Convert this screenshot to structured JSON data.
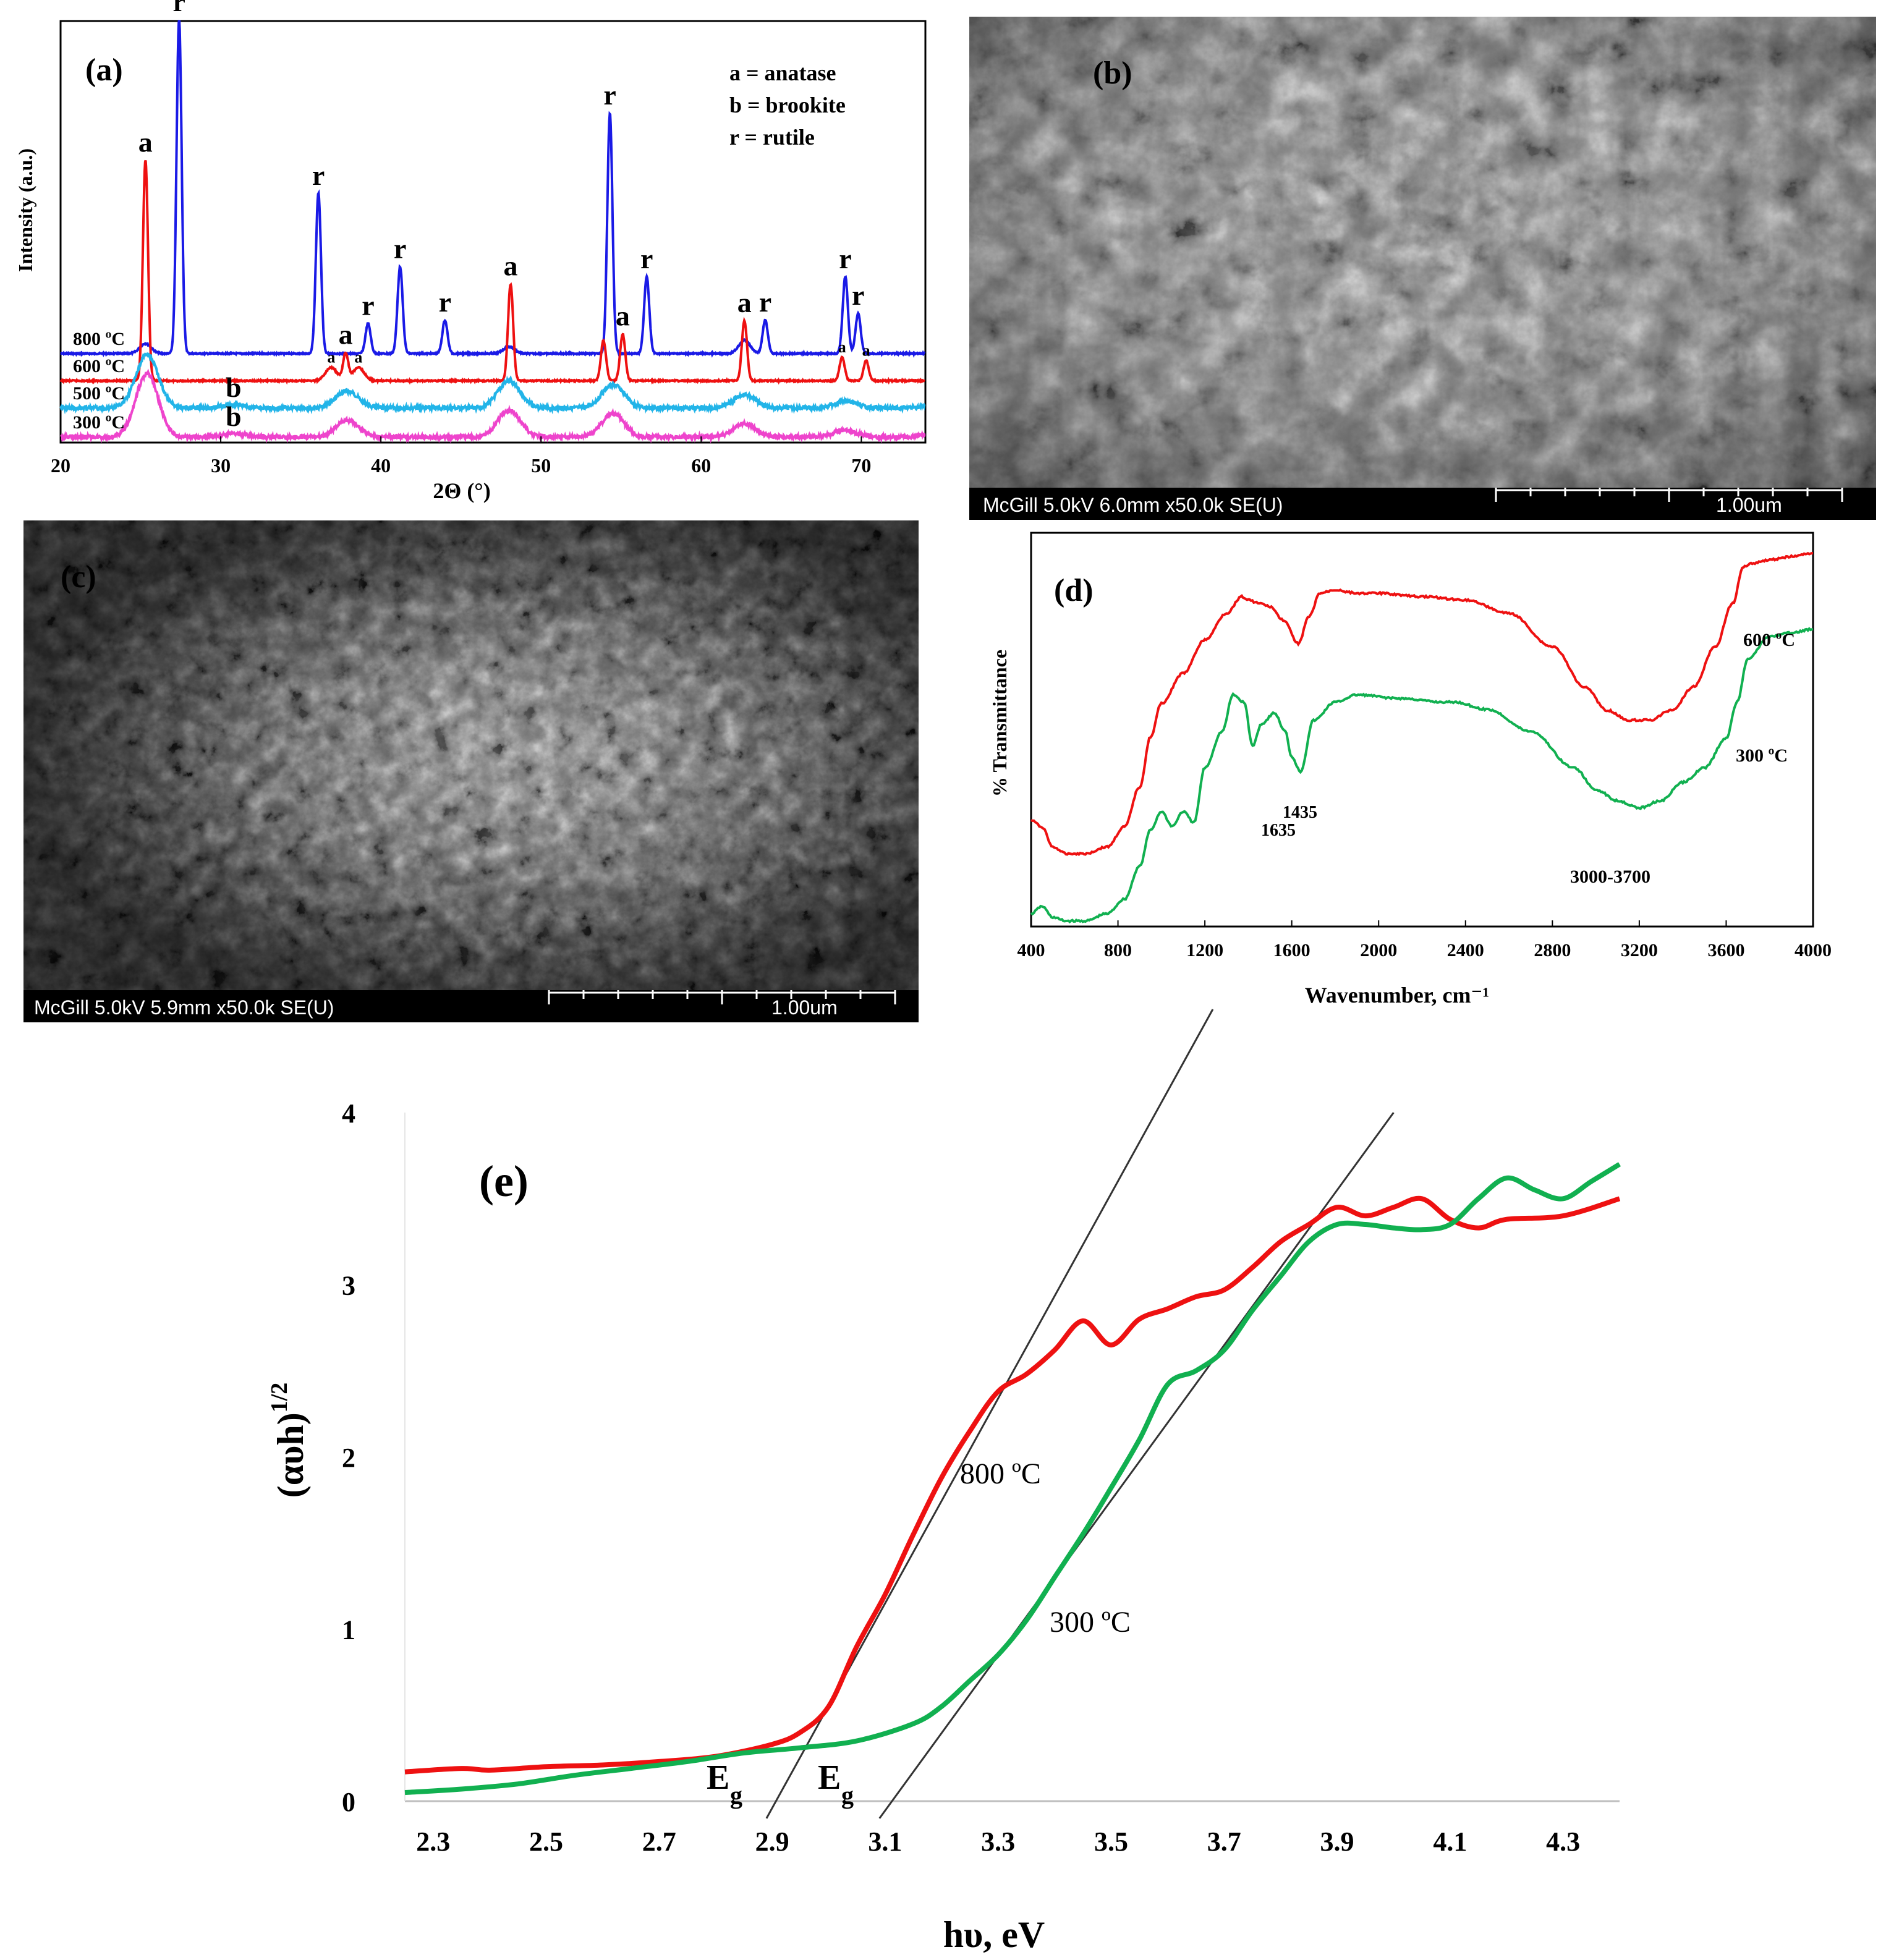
{
  "chart_data": [
    {
      "panel": "(a)",
      "type": "line",
      "xlabel": "2Θ (°)",
      "ylabel": "Intensity (a.u.)",
      "xlim": [
        20,
        74
      ],
      "xticks": [
        "20",
        "30",
        "40",
        "50",
        "60",
        "70"
      ],
      "legend_text": [
        "a = anatase",
        "b = brookite",
        "r = rutile"
      ],
      "legend_position": "top-right",
      "series": [
        {
          "name": "800 ºC",
          "color": "#1a1ae6",
          "peaks": [
            [
              25.3,
              0.03
            ],
            [
              27.4,
              1.0
            ],
            [
              36.1,
              0.48
            ],
            [
              39.2,
              0.09
            ],
            [
              41.2,
              0.26
            ],
            [
              44.0,
              0.1
            ],
            [
              48.0,
              0.02
            ],
            [
              54.3,
              0.72
            ],
            [
              56.6,
              0.23
            ],
            [
              62.7,
              0.04
            ],
            [
              64.0,
              0.1
            ],
            [
              69.0,
              0.23
            ],
            [
              69.8,
              0.12
            ]
          ]
        },
        {
          "name": "600 ºC",
          "color": "#ee1111",
          "peaks": [
            [
              25.3,
              0.66
            ],
            [
              36.9,
              0.04
            ],
            [
              37.8,
              0.08
            ],
            [
              38.6,
              0.04
            ],
            [
              48.1,
              0.29
            ],
            [
              53.9,
              0.12
            ],
            [
              55.1,
              0.14
            ],
            [
              62.7,
              0.18
            ],
            [
              68.8,
              0.07
            ],
            [
              70.3,
              0.06
            ],
            [
              75.0,
              0.05
            ]
          ]
        },
        {
          "name": "500 ºC",
          "color": "#22b4e8",
          "peaks": [
            [
              25.4,
              0.16
            ],
            [
              30.8,
              0.01
            ],
            [
              37.9,
              0.05
            ],
            [
              48.0,
              0.08
            ],
            [
              54.5,
              0.07
            ],
            [
              62.7,
              0.04
            ],
            [
              69.0,
              0.02
            ],
            [
              75.0,
              0.02
            ]
          ]
        },
        {
          "name": "300 ºC",
          "color": "#ee44cc",
          "peaks": [
            [
              25.4,
              0.19
            ],
            [
              30.8,
              0.01
            ],
            [
              37.9,
              0.05
            ],
            [
              48.0,
              0.08
            ],
            [
              54.5,
              0.07
            ],
            [
              62.7,
              0.04
            ],
            [
              69.0,
              0.02
            ],
            [
              75.0,
              0.02
            ]
          ]
        }
      ],
      "annotations": [
        {
          "text": "(a)",
          "x": 23.2,
          "series": null
        },
        {
          "text": "a",
          "x": 25.3,
          "series": "600 ºC"
        },
        {
          "text": "r",
          "x": 27.4,
          "series": "800 ºC"
        },
        {
          "text": "r",
          "x": 36.1,
          "series": "800 ºC"
        },
        {
          "text": "a",
          "x": 37.8,
          "series": "600 ºC"
        },
        {
          "text": "r",
          "x": 39.2,
          "series": "800 ºC"
        },
        {
          "text": "a",
          "x": 36.9,
          "series": "600 ºC",
          "small": true
        },
        {
          "text": "a",
          "x": 38.6,
          "series": "600 ºC",
          "small": true
        },
        {
          "text": "r",
          "x": 41.2,
          "series": "800 ºC"
        },
        {
          "text": "r",
          "x": 44.0,
          "series": "800 ºC"
        },
        {
          "text": "a",
          "x": 48.1,
          "series": "600 ºC"
        },
        {
          "text": "r",
          "x": 54.3,
          "series": "800 ºC"
        },
        {
          "text": "a",
          "x": 55.1,
          "series": "600 ºC"
        },
        {
          "text": "r",
          "x": 56.6,
          "series": "800 ºC"
        },
        {
          "text": "a",
          "x": 62.7,
          "series": "600 ºC"
        },
        {
          "text": "r",
          "x": 64.0,
          "series": "800 ºC"
        },
        {
          "text": "r",
          "x": 69.0,
          "series": "800 ºC"
        },
        {
          "text": "r",
          "x": 69.8,
          "series": "800 ºC"
        },
        {
          "text": "a",
          "x": 68.8,
          "series": "600 ºC",
          "small": true
        },
        {
          "text": "a",
          "x": 70.3,
          "series": "600 ºC",
          "small": true
        },
        {
          "text": "b",
          "x": 30.8,
          "series": "500 ºC"
        },
        {
          "text": "b",
          "x": 30.8,
          "series": "300 ºC"
        }
      ]
    },
    {
      "panel": "(d)",
      "type": "line",
      "xlabel": "Wavenumber, cm⁻¹",
      "ylabel": "% Transmittance",
      "xlim": [
        400,
        4000
      ],
      "xticks": [
        "400",
        "800",
        "1200",
        "1600",
        "2000",
        "2400",
        "2800",
        "3200",
        "3600",
        "4000"
      ],
      "series": [
        {
          "name": "600 ºC",
          "color": "#ee1111",
          "x": [
            400,
            450,
            500,
            560,
            650,
            750,
            830,
            900,
            950,
            1000,
            1100,
            1200,
            1300,
            1370,
            1400,
            1450,
            1500,
            1560,
            1630,
            1680,
            1730,
            1800,
            1900,
            2000,
            2200,
            2400,
            2600,
            2800,
            2950,
            3050,
            3150,
            3250,
            3350,
            3450,
            3550,
            3630,
            3680,
            3720,
            3800,
            3900,
            4000
          ],
          "y": [
            0.2,
            0.18,
            0.12,
            0.1,
            0.1,
            0.12,
            0.18,
            0.3,
            0.45,
            0.55,
            0.64,
            0.74,
            0.82,
            0.87,
            0.86,
            0.85,
            0.84,
            0.8,
            0.73,
            0.81,
            0.88,
            0.89,
            0.88,
            0.88,
            0.87,
            0.86,
            0.82,
            0.72,
            0.6,
            0.53,
            0.5,
            0.5,
            0.53,
            0.6,
            0.72,
            0.85,
            0.96,
            0.97,
            0.98,
            0.99,
            1.0
          ]
        },
        {
          "name": "300 ºC",
          "color": "#11b050",
          "x": [
            400,
            450,
            500,
            560,
            650,
            750,
            830,
            900,
            950,
            1000,
            1050,
            1100,
            1150,
            1200,
            1280,
            1330,
            1380,
            1420,
            1460,
            1520,
            1570,
            1600,
            1640,
            1700,
            1800,
            1900,
            2100,
            2300,
            2350,
            2500,
            2700,
            2900,
            3000,
            3100,
            3200,
            3300,
            3400,
            3500,
            3600,
            3650,
            3700,
            3800,
            3900,
            4000
          ],
          "y": [
            0.02,
            0.04,
            0.01,
            0.0,
            0.0,
            0.02,
            0.06,
            0.15,
            0.25,
            0.3,
            0.26,
            0.3,
            0.27,
            0.42,
            0.52,
            0.62,
            0.6,
            0.48,
            0.54,
            0.57,
            0.52,
            0.45,
            0.41,
            0.55,
            0.6,
            0.62,
            0.61,
            0.6,
            0.6,
            0.58,
            0.52,
            0.42,
            0.36,
            0.33,
            0.31,
            0.33,
            0.38,
            0.42,
            0.5,
            0.6,
            0.72,
            0.78,
            0.79,
            0.8
          ]
        }
      ],
      "annotations": [
        {
          "text": "(d)",
          "x": 560
        },
        {
          "text": "1435",
          "x": 1640,
          "series": "300 ºC"
        },
        {
          "text": "1635",
          "x": 1500,
          "series": "300 ºC"
        },
        {
          "text": "3000-3700",
          "x": 3100,
          "series": "300 ºC"
        },
        {
          "text": "600 ºC",
          "x": 3900,
          "series": "600 ºC"
        },
        {
          "text": "300 ºC",
          "x": 3820,
          "series": "300 ºC"
        }
      ]
    },
    {
      "panel": "(e)",
      "type": "line",
      "xlabel": "hυ, eV",
      "ylabel": "(αυh)¹ᐟ²",
      "ylabel_base": "(αυh)",
      "ylabel_sup": "1/2",
      "xlim": [
        2.25,
        4.4
      ],
      "ylim": [
        0,
        4
      ],
      "xticks": [
        "2.3",
        "2.5",
        "2.7",
        "2.9",
        "3.1",
        "3.3",
        "3.5",
        "3.7",
        "3.9",
        "4.1",
        "4.3"
      ],
      "yticks": [
        "0",
        "1",
        "2",
        "3",
        "4"
      ],
      "series": [
        {
          "name": "800 ºC",
          "color": "#ee1111",
          "x": [
            2.25,
            2.35,
            2.4,
            2.5,
            2.6,
            2.7,
            2.8,
            2.9,
            2.95,
            3.0,
            3.05,
            3.1,
            3.15,
            3.2,
            3.25,
            3.3,
            3.35,
            3.4,
            3.45,
            3.5,
            3.55,
            3.6,
            3.65,
            3.7,
            3.75,
            3.8,
            3.85,
            3.9,
            3.95,
            4.0,
            4.05,
            4.1,
            4.15,
            4.2,
            4.3,
            4.4
          ],
          "y": [
            0.17,
            0.19,
            0.18,
            0.2,
            0.21,
            0.23,
            0.26,
            0.33,
            0.4,
            0.55,
            0.9,
            1.2,
            1.55,
            1.88,
            2.15,
            2.38,
            2.48,
            2.62,
            2.79,
            2.65,
            2.8,
            2.86,
            2.93,
            2.97,
            3.1,
            3.25,
            3.35,
            3.45,
            3.4,
            3.45,
            3.5,
            3.38,
            3.33,
            3.38,
            3.4,
            3.5
          ]
        },
        {
          "name": "300 ºC",
          "color": "#11b050",
          "x": [
            2.25,
            2.35,
            2.45,
            2.55,
            2.65,
            2.75,
            2.85,
            2.95,
            3.05,
            3.15,
            3.2,
            3.25,
            3.3,
            3.35,
            3.4,
            3.45,
            3.5,
            3.55,
            3.6,
            3.65,
            3.7,
            3.75,
            3.8,
            3.85,
            3.9,
            3.95,
            4.0,
            4.05,
            4.1,
            4.15,
            4.2,
            4.25,
            4.3,
            4.35,
            4.4
          ],
          "y": [
            0.05,
            0.07,
            0.1,
            0.15,
            0.19,
            0.23,
            0.28,
            0.31,
            0.35,
            0.45,
            0.55,
            0.7,
            0.85,
            1.05,
            1.3,
            1.55,
            1.82,
            2.1,
            2.42,
            2.5,
            2.62,
            2.85,
            3.05,
            3.25,
            3.35,
            3.35,
            3.33,
            3.32,
            3.35,
            3.5,
            3.62,
            3.55,
            3.5,
            3.6,
            3.7
          ]
        }
      ],
      "tangents": [
        {
          "from": [
            2.89,
            -0.1
          ],
          "to": [
            3.68,
            4.6
          ]
        },
        {
          "from": [
            3.09,
            -0.1
          ],
          "to": [
            4.0,
            4.0
          ]
        }
      ],
      "annotations": [
        {
          "text": "(e)",
          "x": 2.4
        },
        {
          "text": "800 ºC",
          "x": 3.3,
          "series": "800 ºC"
        },
        {
          "text": "300 ºC",
          "x": 3.42,
          "series": "300 ºC"
        },
        {
          "text": "E",
          "sub": "g",
          "x": 2.86
        },
        {
          "text": "E",
          "sub": "g",
          "x": 3.06
        }
      ]
    }
  ],
  "sem_images": [
    {
      "panel": "(b)",
      "caption": "McGill 5.0kV 6.0mm x50.0k SE(U)",
      "scale_label": "1.00um"
    },
    {
      "panel": "(c)",
      "caption": "McGill 5.0kV 5.9mm x50.0k SE(U)",
      "scale_label": "1.00um"
    }
  ],
  "text_labels": {
    "a_legend": [
      "a = anatase",
      "b = brookite",
      "r = rutile"
    ]
  }
}
